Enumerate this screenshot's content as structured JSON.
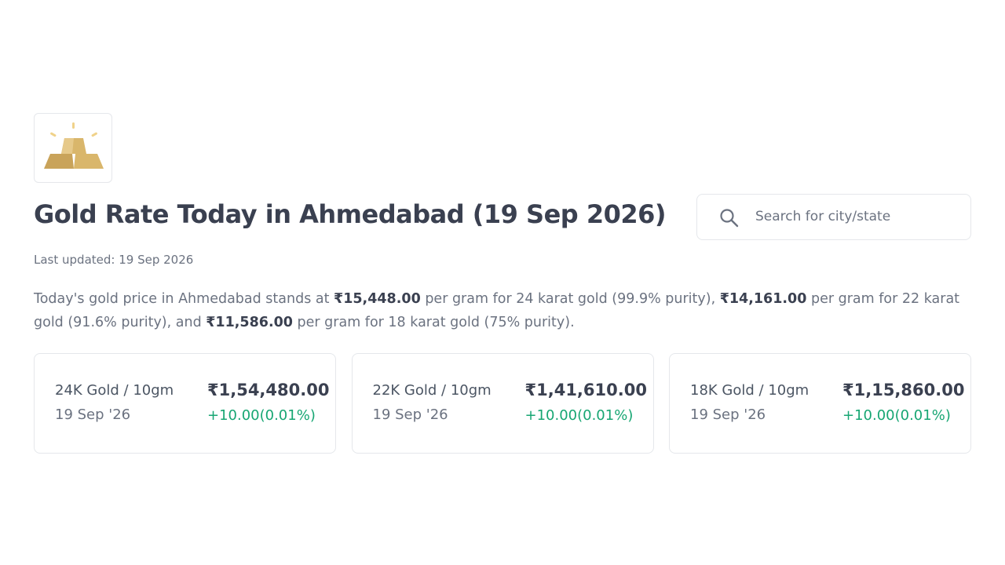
{
  "header": {
    "title": "Gold Rate Today in Ahmedabad (19 Sep 2026)",
    "last_updated": "Last updated: 19 Sep 2026"
  },
  "search": {
    "placeholder": "Search for city/state"
  },
  "description": [
    {
      "text": "Today's gold price in Ahmedabad stands at ",
      "bold": false
    },
    {
      "text": "₹15,448.00",
      "bold": true
    },
    {
      "text": " per gram for 24 karat gold (99.9% purity), ",
      "bold": false
    },
    {
      "text": "₹14,161.00",
      "bold": true
    },
    {
      "text": " per gram for 22 karat gold (91.6% purity), and ",
      "bold": false
    },
    {
      "text": "₹11,586.00",
      "bold": true
    },
    {
      "text": " per gram for 18 karat gold (75% purity).",
      "bold": false
    }
  ],
  "cards": [
    {
      "label": "24K Gold / 10gm",
      "date": "19 Sep '26",
      "price": "₹1,54,480.00",
      "change": "+10.00(0.01%)"
    },
    {
      "label": "22K Gold / 10gm",
      "date": "19 Sep '26",
      "price": "₹1,41,610.00",
      "change": "+10.00(0.01%)"
    },
    {
      "label": "18K Gold / 10gm",
      "date": "19 Sep '26",
      "price": "₹1,15,860.00",
      "change": "+10.00(0.01%)"
    }
  ]
}
